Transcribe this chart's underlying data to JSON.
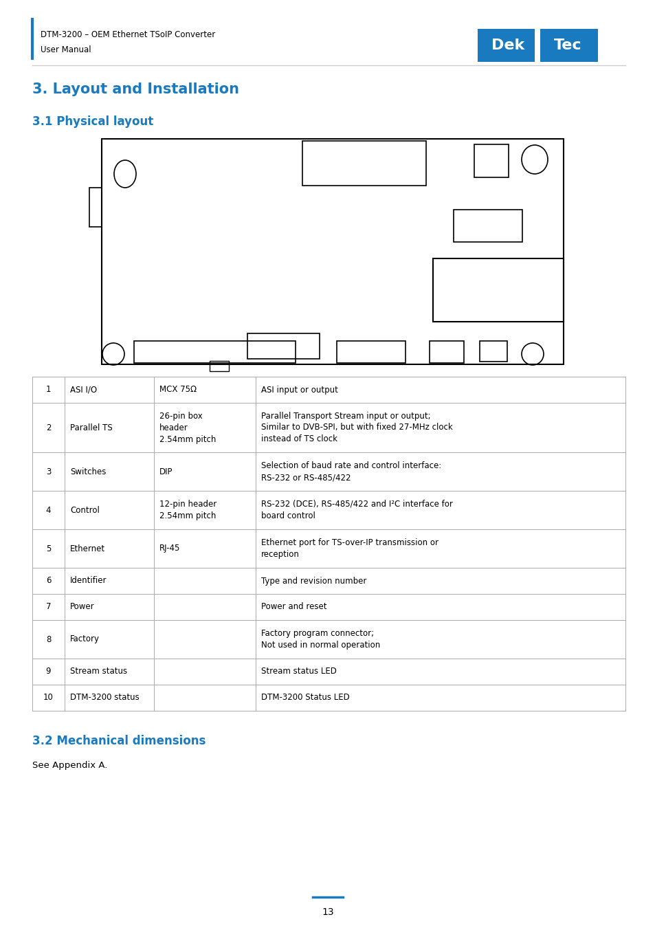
{
  "header_line1": "DTM-3200 – OEM Ethernet TSoIP Converter",
  "header_line2": "User Manual",
  "header_color": "#000000",
  "accent_color": "#1a7abf",
  "section_title": "3. Layout and Installation",
  "subsection_title": "3.1 Physical layout",
  "subsection2_title": "3.2 Mechanical dimensions",
  "subsection2_body": "See Appendix A.",
  "page_number": "13",
  "table_rows": [
    [
      "1",
      "ASI I/O",
      "MCX 75Ω",
      "ASI input or output"
    ],
    [
      "2",
      "Parallel TS",
      "26-pin box\nheader\n2.54mm pitch",
      "Parallel Transport Stream input or output;\nSimilar to DVB-SPI, but with fixed 27-MHz clock\ninstead of TS clock"
    ],
    [
      "3",
      "Switches",
      "DIP",
      "Selection of baud rate and control interface:\nRS-232 or RS-485/422"
    ],
    [
      "4",
      "Control",
      "12-pin header\n2.54mm pitch",
      "RS-232 (DCE), RS-485/422 and I²C interface for\nboard control"
    ],
    [
      "5",
      "Ethernet",
      "RJ-45",
      "Ethernet port for TS-over-IP transmission or\nreception"
    ],
    [
      "6",
      "Identifier",
      "",
      "Type and revision number"
    ],
    [
      "7",
      "Power",
      "",
      "Power and reset"
    ],
    [
      "8",
      "Factory",
      "",
      "Factory program connector;\nNot used in normal operation"
    ],
    [
      "9",
      "Stream status",
      "",
      "Stream status LED"
    ],
    [
      "10",
      "DTM-3200 status",
      "",
      "DTM-3200 Status LED"
    ]
  ],
  "bg_color": "#ffffff",
  "table_line_color": "#aaaaaa",
  "text_color": "#000000",
  "logo_color": "#1a7abf"
}
